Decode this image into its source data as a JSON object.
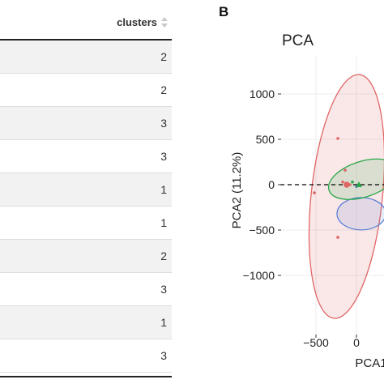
{
  "table": {
    "column_header": "clusters",
    "rows": [
      "2",
      "2",
      "3",
      "3",
      "1",
      "1",
      "2",
      "3",
      "1",
      "3"
    ]
  },
  "plot": {
    "panel_letter": "B",
    "title": "PCA",
    "xlabel": "PCA1",
    "ylabel": "PCA2 (11.2%)",
    "y_ticks": [
      "1000",
      "500",
      "0",
      "−500",
      "−1000"
    ],
    "x_ticks": [
      "−500",
      "0"
    ]
  },
  "chart_data": {
    "type": "scatter",
    "title": "PCA",
    "xlabel": "PCA1",
    "ylabel": "PCA2 (11.2%)",
    "xlim": [
      -750,
      200
    ],
    "ylim": [
      -1430,
      1230
    ],
    "points": [
      {
        "x": -230,
        "y": 510,
        "cluster": "1"
      },
      {
        "x": -140,
        "y": 160,
        "cluster": "1"
      },
      {
        "x": -520,
        "y": -90,
        "cluster": "1"
      },
      {
        "x": -230,
        "y": -580,
        "cluster": "1"
      },
      {
        "x": -170,
        "y": 30,
        "cluster": "1"
      },
      {
        "x": -80,
        "y": 0,
        "cluster": "1"
      },
      {
        "x": -50,
        "y": 30,
        "cluster": "2"
      },
      {
        "x": 0,
        "y": -20,
        "cluster": "3"
      }
    ],
    "centroids": [
      {
        "x": -120,
        "y": 0,
        "cluster": "1"
      },
      {
        "x": 30,
        "y": 0,
        "cluster": "2"
      }
    ],
    "colors": {
      "1": "#e06666",
      "2": "#2aa84a",
      "3": "#5b7fd6"
    },
    "reference_line": {
      "y": 0,
      "style": "dashed"
    }
  }
}
